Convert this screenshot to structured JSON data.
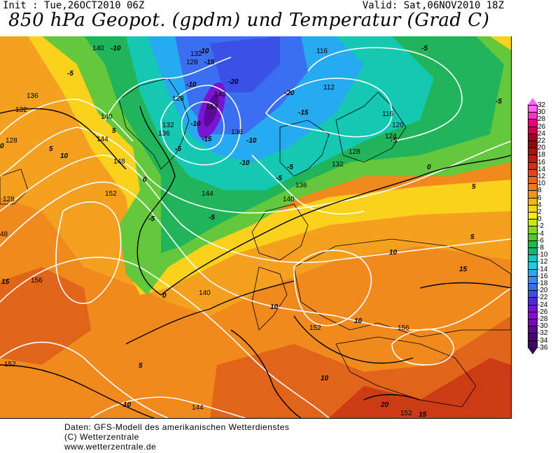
{
  "header": {
    "init": "Init : Tue,26OCT2010 06Z",
    "valid": "Valid: Sat,06NOV2010 18Z",
    "title": "850 hPa Geopot. (gpdm) und Temperatur (Grad C)"
  },
  "legend": {
    "levels": [
      "32",
      "30",
      "28",
      "26",
      "24",
      "22",
      "20",
      "18",
      "16",
      "14",
      "12",
      "10",
      "8",
      "6",
      "4",
      "2",
      "0",
      "-2",
      "-4",
      "-6",
      "-8",
      "-10",
      "-12",
      "-14",
      "-16",
      "-18",
      "-20",
      "-22",
      "-24",
      "-26",
      "-28",
      "-30",
      "-32",
      "-34",
      "-36"
    ],
    "colors": [
      "#ff66ff",
      "#ff33cc",
      "#e6007a",
      "#c80050",
      "#a0002c",
      "#8a0a0a",
      "#a01414",
      "#b91e10",
      "#cd3216",
      "#dd4a14",
      "#e8641a",
      "#f07a1e",
      "#f4961e",
      "#f8b41e",
      "#fad21e",
      "#f5ec14",
      "#c8e614",
      "#8cd21e",
      "#4cc832",
      "#22b848",
      "#14b478",
      "#14c8b4",
      "#1ec8e6",
      "#28aaf0",
      "#3c8cf0",
      "#3c6ef0",
      "#3c50e6",
      "#5028dc",
      "#7814d2",
      "#8c0ad2",
      "#780ab4",
      "#5a0a96",
      "#460a78",
      "#3c0a64",
      "#320a50"
    ]
  },
  "geopotential_labels": [
    "140",
    "132",
    "128",
    "128",
    "136",
    "140",
    "144",
    "132",
    "136",
    "140",
    "144",
    "136",
    "132",
    "116",
    "112",
    "116",
    "120",
    "124",
    "128",
    "132",
    "128",
    "136",
    "140",
    "144",
    "148",
    "152",
    "156",
    "152",
    "140",
    "152",
    "156",
    "144",
    "152",
    "48",
    "128"
  ],
  "temperature_labels": [
    "-10",
    "-10",
    "-15",
    "-20",
    "-10",
    "-20",
    "-15",
    "-15",
    "-10",
    "-10",
    "-5",
    "-5",
    "-5",
    "-5",
    "-5",
    "-5",
    "-5",
    "0",
    "0",
    "0",
    "0",
    "5",
    "5",
    "5",
    "10",
    "10",
    "10",
    "10",
    "10",
    "15",
    "15",
    "15",
    "20",
    "-10",
    "-5",
    "5",
    "-5",
    "10",
    "5"
  ],
  "footer": {
    "line1": "Daten: GFS-Modell des amerikanischen Wetterdienstes",
    "line2": "(C) Wetterzentrale",
    "line3": "www.wetterzentrale.de"
  }
}
